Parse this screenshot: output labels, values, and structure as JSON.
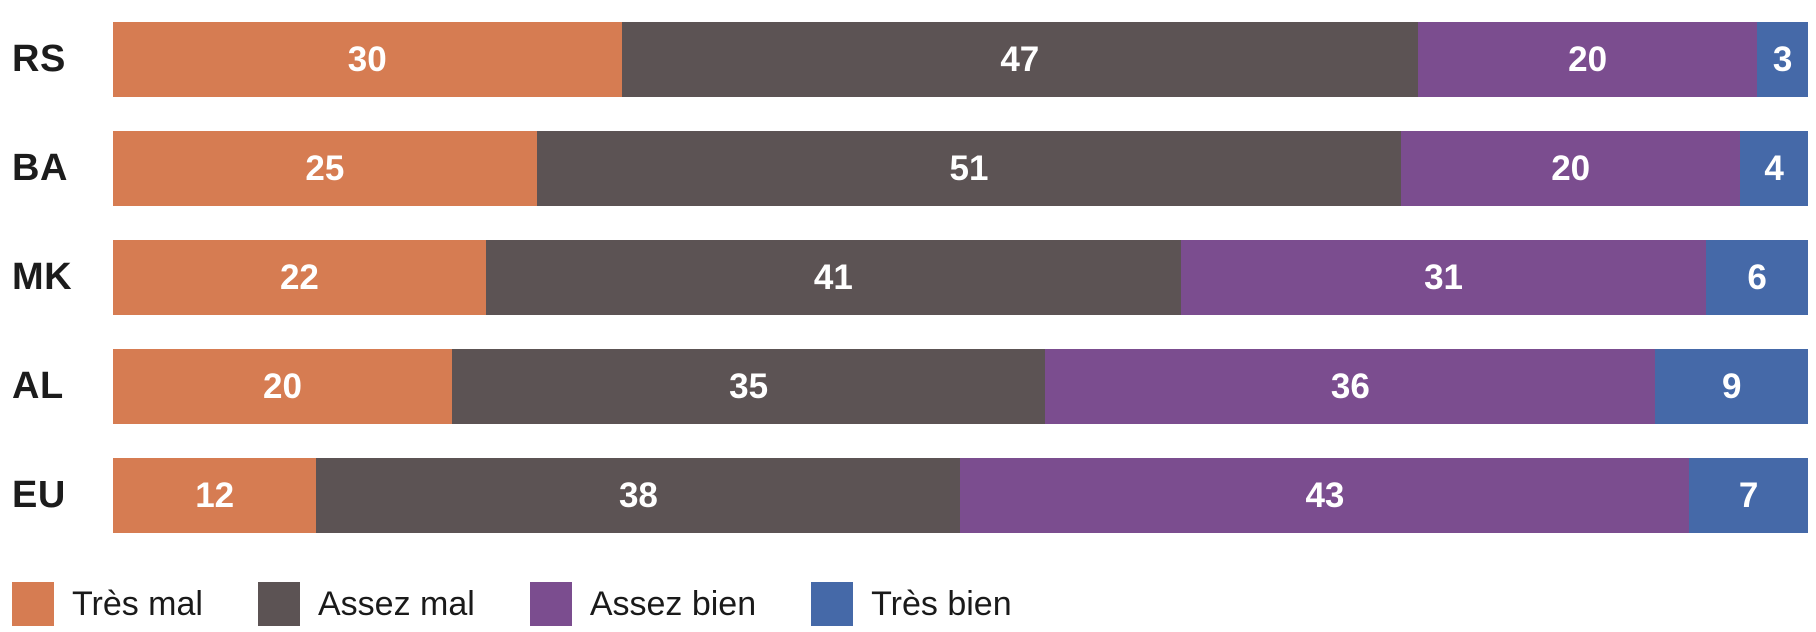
{
  "colors": {
    "tres_mal": "#D67C52",
    "assez_mal": "#5C5354",
    "assez_bien": "#7B4D8F",
    "tres_bien": "#4569A8",
    "category_text": "#1C1C1C",
    "value_text": "#FFFFFF",
    "legend_text": "#1A1A1A",
    "background": "#FFFFFF"
  },
  "chart_data": {
    "type": "bar",
    "orientation": "horizontal",
    "stacked": true,
    "title": "",
    "xlabel": "",
    "ylabel": "",
    "xlim": [
      0,
      100
    ],
    "grid": false,
    "value_labels": "inside-center",
    "legend_position": "bottom-left",
    "categories": [
      "RS",
      "BA",
      "MK",
      "AL",
      "EU"
    ],
    "series": [
      {
        "name": "Très mal",
        "color": "#D67C52",
        "values": [
          30,
          25,
          22,
          20,
          12
        ]
      },
      {
        "name": "Assez mal",
        "color": "#5C5354",
        "values": [
          47,
          51,
          41,
          35,
          38
        ]
      },
      {
        "name": "Assez bien",
        "color": "#7B4D8F",
        "values": [
          20,
          20,
          31,
          36,
          43
        ]
      },
      {
        "name": "Très bien",
        "color": "#4569A8",
        "values": [
          3,
          4,
          6,
          9,
          7
        ]
      }
    ]
  }
}
